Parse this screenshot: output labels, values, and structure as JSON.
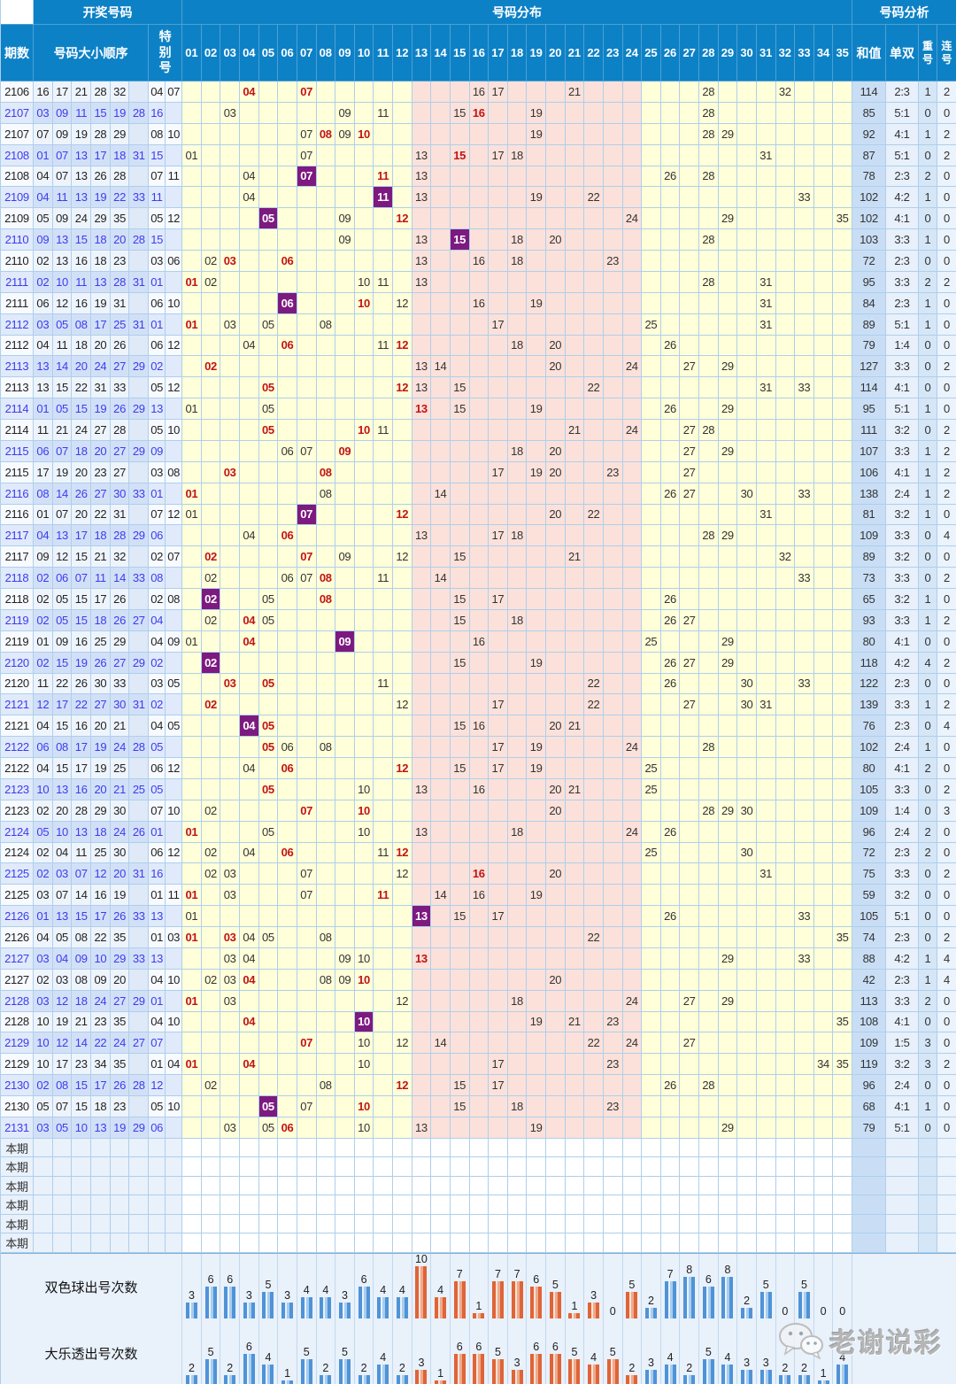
{
  "header": {
    "col_period": "期数",
    "group_draw": "开奖号码",
    "col_numbers": "号码大小顺序",
    "col_special": "特别号",
    "group_distribution": "号码分布",
    "group_analysis": "号码分析",
    "col_sum": "和值",
    "col_odd_even": "单双",
    "col_repeat": "重号",
    "col_consecutive": "连号",
    "distribution_columns": [
      "01",
      "02",
      "03",
      "04",
      "05",
      "06",
      "07",
      "08",
      "09",
      "10",
      "11",
      "12",
      "13",
      "14",
      "15",
      "16",
      "17",
      "18",
      "19",
      "20",
      "21",
      "22",
      "23",
      "24",
      "25",
      "26",
      "27",
      "28",
      "29",
      "30",
      "31",
      "32",
      "33",
      "34",
      "35"
    ]
  },
  "rows": [
    {
      "period": "2106",
      "kind": "dlt",
      "numbers": [
        "16",
        "17",
        "21",
        "28",
        "32"
      ],
      "special": [
        "04",
        "07"
      ],
      "sum": "114",
      "odd_even": "2:3",
      "repeat": "1",
      "consecutive": "2"
    },
    {
      "period": "2107",
      "kind": "ssq",
      "numbers": [
        "03",
        "09",
        "11",
        "15",
        "19",
        "28"
      ],
      "special": [
        "16"
      ],
      "sum": "85",
      "odd_even": "5:1",
      "repeat": "0",
      "consecutive": "0"
    },
    {
      "period": "2107",
      "kind": "dlt",
      "numbers": [
        "07",
        "09",
        "19",
        "28",
        "29"
      ],
      "special": [
        "08",
        "10"
      ],
      "sum": "92",
      "odd_even": "4:1",
      "repeat": "1",
      "consecutive": "2"
    },
    {
      "period": "2108",
      "kind": "ssq",
      "numbers": [
        "01",
        "07",
        "13",
        "17",
        "18",
        "31"
      ],
      "special": [
        "15"
      ],
      "sum": "87",
      "odd_even": "5:1",
      "repeat": "0",
      "consecutive": "2"
    },
    {
      "period": "2108",
      "kind": "dlt",
      "numbers": [
        "04",
        "07",
        "13",
        "26",
        "28"
      ],
      "special": [
        "07",
        "11"
      ],
      "sum": "78",
      "odd_even": "2:3",
      "repeat": "2",
      "consecutive": "0"
    },
    {
      "period": "2109",
      "kind": "ssq",
      "numbers": [
        "04",
        "11",
        "13",
        "19",
        "22",
        "33"
      ],
      "special": [
        "11"
      ],
      "sum": "102",
      "odd_even": "4:2",
      "repeat": "1",
      "consecutive": "0"
    },
    {
      "period": "2109",
      "kind": "dlt",
      "numbers": [
        "05",
        "09",
        "24",
        "29",
        "35"
      ],
      "special": [
        "05",
        "12"
      ],
      "sum": "102",
      "odd_even": "4:1",
      "repeat": "0",
      "consecutive": "0"
    },
    {
      "period": "2110",
      "kind": "ssq",
      "numbers": [
        "09",
        "13",
        "15",
        "18",
        "20",
        "28"
      ],
      "special": [
        "15"
      ],
      "sum": "103",
      "odd_even": "3:3",
      "repeat": "1",
      "consecutive": "0"
    },
    {
      "period": "2110",
      "kind": "dlt",
      "numbers": [
        "02",
        "13",
        "16",
        "18",
        "23"
      ],
      "special": [
        "03",
        "06"
      ],
      "sum": "72",
      "odd_even": "2:3",
      "repeat": "0",
      "consecutive": "0"
    },
    {
      "period": "2111",
      "kind": "ssq",
      "numbers": [
        "02",
        "10",
        "11",
        "13",
        "28",
        "31"
      ],
      "special": [
        "01"
      ],
      "sum": "95",
      "odd_even": "3:3",
      "repeat": "2",
      "consecutive": "2"
    },
    {
      "period": "2111",
      "kind": "dlt",
      "numbers": [
        "06",
        "12",
        "16",
        "19",
        "31"
      ],
      "special": [
        "06",
        "10"
      ],
      "sum": "84",
      "odd_even": "2:3",
      "repeat": "1",
      "consecutive": "0"
    },
    {
      "period": "2112",
      "kind": "ssq",
      "numbers": [
        "03",
        "05",
        "08",
        "17",
        "25",
        "31"
      ],
      "special": [
        "01"
      ],
      "sum": "89",
      "odd_even": "5:1",
      "repeat": "1",
      "consecutive": "0"
    },
    {
      "period": "2112",
      "kind": "dlt",
      "numbers": [
        "04",
        "11",
        "18",
        "20",
        "26"
      ],
      "special": [
        "06",
        "12"
      ],
      "sum": "79",
      "odd_even": "1:4",
      "repeat": "0",
      "consecutive": "0"
    },
    {
      "period": "2113",
      "kind": "ssq",
      "numbers": [
        "13",
        "14",
        "20",
        "24",
        "27",
        "29"
      ],
      "special": [
        "02"
      ],
      "sum": "127",
      "odd_even": "3:3",
      "repeat": "0",
      "consecutive": "2"
    },
    {
      "period": "2113",
      "kind": "dlt",
      "numbers": [
        "13",
        "15",
        "22",
        "31",
        "33"
      ],
      "special": [
        "05",
        "12"
      ],
      "sum": "114",
      "odd_even": "4:1",
      "repeat": "0",
      "consecutive": "0"
    },
    {
      "period": "2114",
      "kind": "ssq",
      "numbers": [
        "01",
        "05",
        "15",
        "19",
        "26",
        "29"
      ],
      "special": [
        "13"
      ],
      "sum": "95",
      "odd_even": "5:1",
      "repeat": "1",
      "consecutive": "0"
    },
    {
      "period": "2114",
      "kind": "dlt",
      "numbers": [
        "11",
        "21",
        "24",
        "27",
        "28"
      ],
      "special": [
        "05",
        "10"
      ],
      "sum": "111",
      "odd_even": "3:2",
      "repeat": "0",
      "consecutive": "2"
    },
    {
      "period": "2115",
      "kind": "ssq",
      "numbers": [
        "06",
        "07",
        "18",
        "20",
        "27",
        "29"
      ],
      "special": [
        "09"
      ],
      "sum": "107",
      "odd_even": "3:3",
      "repeat": "1",
      "consecutive": "2"
    },
    {
      "period": "2115",
      "kind": "dlt",
      "numbers": [
        "17",
        "19",
        "20",
        "23",
        "27"
      ],
      "special": [
        "03",
        "08"
      ],
      "sum": "106",
      "odd_even": "4:1",
      "repeat": "1",
      "consecutive": "2"
    },
    {
      "period": "2116",
      "kind": "ssq",
      "numbers": [
        "08",
        "14",
        "26",
        "27",
        "30",
        "33"
      ],
      "special": [
        "01"
      ],
      "sum": "138",
      "odd_even": "2:4",
      "repeat": "1",
      "consecutive": "2"
    },
    {
      "period": "2116",
      "kind": "dlt",
      "numbers": [
        "01",
        "07",
        "20",
        "22",
        "31"
      ],
      "special": [
        "07",
        "12"
      ],
      "sum": "81",
      "odd_even": "3:2",
      "repeat": "1",
      "consecutive": "0"
    },
    {
      "period": "2117",
      "kind": "ssq",
      "numbers": [
        "04",
        "13",
        "17",
        "18",
        "28",
        "29"
      ],
      "special": [
        "06"
      ],
      "sum": "109",
      "odd_even": "3:3",
      "repeat": "0",
      "consecutive": "4"
    },
    {
      "period": "2117",
      "kind": "dlt",
      "numbers": [
        "09",
        "12",
        "15",
        "21",
        "32"
      ],
      "special": [
        "02",
        "07"
      ],
      "sum": "89",
      "odd_even": "3:2",
      "repeat": "0",
      "consecutive": "0"
    },
    {
      "period": "2118",
      "kind": "ssq",
      "numbers": [
        "02",
        "06",
        "07",
        "11",
        "14",
        "33"
      ],
      "special": [
        "08"
      ],
      "sum": "73",
      "odd_even": "3:3",
      "repeat": "0",
      "consecutive": "2"
    },
    {
      "period": "2118",
      "kind": "dlt",
      "numbers": [
        "02",
        "05",
        "15",
        "17",
        "26"
      ],
      "special": [
        "02",
        "08"
      ],
      "sum": "65",
      "odd_even": "3:2",
      "repeat": "1",
      "consecutive": "0"
    },
    {
      "period": "2119",
      "kind": "ssq",
      "numbers": [
        "02",
        "05",
        "15",
        "18",
        "26",
        "27"
      ],
      "special": [
        "04"
      ],
      "sum": "93",
      "odd_even": "3:3",
      "repeat": "1",
      "consecutive": "2"
    },
    {
      "period": "2119",
      "kind": "dlt",
      "numbers": [
        "01",
        "09",
        "16",
        "25",
        "29"
      ],
      "special": [
        "04",
        "09"
      ],
      "sum": "80",
      "odd_even": "4:1",
      "repeat": "0",
      "consecutive": "0"
    },
    {
      "period": "2120",
      "kind": "ssq",
      "numbers": [
        "02",
        "15",
        "19",
        "26",
        "27",
        "29"
      ],
      "special": [
        "02"
      ],
      "sum": "118",
      "odd_even": "4:2",
      "repeat": "4",
      "consecutive": "2"
    },
    {
      "period": "2120",
      "kind": "dlt",
      "numbers": [
        "11",
        "22",
        "26",
        "30",
        "33"
      ],
      "special": [
        "03",
        "05"
      ],
      "sum": "122",
      "odd_even": "2:3",
      "repeat": "0",
      "consecutive": "0"
    },
    {
      "period": "2121",
      "kind": "ssq",
      "numbers": [
        "12",
        "17",
        "22",
        "27",
        "30",
        "31"
      ],
      "special": [
        "02"
      ],
      "sum": "139",
      "odd_even": "3:3",
      "repeat": "1",
      "consecutive": "2"
    },
    {
      "period": "2121",
      "kind": "dlt",
      "numbers": [
        "04",
        "15",
        "16",
        "20",
        "21"
      ],
      "special": [
        "04",
        "05"
      ],
      "sum": "76",
      "odd_even": "2:3",
      "repeat": "0",
      "consecutive": "4"
    },
    {
      "period": "2122",
      "kind": "ssq",
      "numbers": [
        "06",
        "08",
        "17",
        "19",
        "24",
        "28"
      ],
      "special": [
        "05"
      ],
      "sum": "102",
      "odd_even": "2:4",
      "repeat": "1",
      "consecutive": "0"
    },
    {
      "period": "2122",
      "kind": "dlt",
      "numbers": [
        "04",
        "15",
        "17",
        "19",
        "25"
      ],
      "special": [
        "06",
        "12"
      ],
      "sum": "80",
      "odd_even": "4:1",
      "repeat": "2",
      "consecutive": "0"
    },
    {
      "period": "2123",
      "kind": "ssq",
      "numbers": [
        "10",
        "13",
        "16",
        "20",
        "21",
        "25"
      ],
      "special": [
        "05"
      ],
      "sum": "105",
      "odd_even": "3:3",
      "repeat": "0",
      "consecutive": "2"
    },
    {
      "period": "2123",
      "kind": "dlt",
      "numbers": [
        "02",
        "20",
        "28",
        "29",
        "30"
      ],
      "special": [
        "07",
        "10"
      ],
      "sum": "109",
      "odd_even": "1:4",
      "repeat": "0",
      "consecutive": "3"
    },
    {
      "period": "2124",
      "kind": "ssq",
      "numbers": [
        "05",
        "10",
        "13",
        "18",
        "24",
        "26"
      ],
      "special": [
        "01"
      ],
      "sum": "96",
      "odd_even": "2:4",
      "repeat": "2",
      "consecutive": "0"
    },
    {
      "period": "2124",
      "kind": "dlt",
      "numbers": [
        "02",
        "04",
        "11",
        "25",
        "30"
      ],
      "special": [
        "06",
        "12"
      ],
      "sum": "72",
      "odd_even": "2:3",
      "repeat": "2",
      "consecutive": "0"
    },
    {
      "period": "2125",
      "kind": "ssq",
      "numbers": [
        "02",
        "03",
        "07",
        "12",
        "20",
        "31"
      ],
      "special": [
        "16"
      ],
      "sum": "75",
      "odd_even": "3:3",
      "repeat": "0",
      "consecutive": "2"
    },
    {
      "period": "2125",
      "kind": "dlt",
      "numbers": [
        "03",
        "07",
        "14",
        "16",
        "19"
      ],
      "special": [
        "01",
        "11"
      ],
      "sum": "59",
      "odd_even": "3:2",
      "repeat": "0",
      "consecutive": "0"
    },
    {
      "period": "2126",
      "kind": "ssq",
      "numbers": [
        "01",
        "13",
        "15",
        "17",
        "26",
        "33"
      ],
      "special": [
        "13"
      ],
      "sum": "105",
      "odd_even": "5:1",
      "repeat": "0",
      "consecutive": "0"
    },
    {
      "period": "2126",
      "kind": "dlt",
      "numbers": [
        "04",
        "05",
        "08",
        "22",
        "35"
      ],
      "special": [
        "01",
        "03"
      ],
      "sum": "74",
      "odd_even": "2:3",
      "repeat": "0",
      "consecutive": "2"
    },
    {
      "period": "2127",
      "kind": "ssq",
      "numbers": [
        "03",
        "04",
        "09",
        "10",
        "29",
        "33"
      ],
      "special": [
        "13"
      ],
      "sum": "88",
      "odd_even": "4:2",
      "repeat": "1",
      "consecutive": "4"
    },
    {
      "period": "2127",
      "kind": "dlt",
      "numbers": [
        "02",
        "03",
        "08",
        "09",
        "20"
      ],
      "special": [
        "04",
        "10"
      ],
      "sum": "42",
      "odd_even": "2:3",
      "repeat": "1",
      "consecutive": "4"
    },
    {
      "period": "2128",
      "kind": "ssq",
      "numbers": [
        "03",
        "12",
        "18",
        "24",
        "27",
        "29"
      ],
      "special": [
        "01"
      ],
      "sum": "113",
      "odd_even": "3:3",
      "repeat": "2",
      "consecutive": "0"
    },
    {
      "period": "2128",
      "kind": "dlt",
      "numbers": [
        "10",
        "19",
        "21",
        "23",
        "35"
      ],
      "special": [
        "04",
        "10"
      ],
      "sum": "108",
      "odd_even": "4:1",
      "repeat": "0",
      "consecutive": "0"
    },
    {
      "period": "2129",
      "kind": "ssq",
      "numbers": [
        "10",
        "12",
        "14",
        "22",
        "24",
        "27"
      ],
      "special": [
        "07"
      ],
      "sum": "109",
      "odd_even": "1:5",
      "repeat": "3",
      "consecutive": "0"
    },
    {
      "period": "2129",
      "kind": "dlt",
      "numbers": [
        "10",
        "17",
        "23",
        "34",
        "35"
      ],
      "special": [
        "01",
        "04"
      ],
      "sum": "119",
      "odd_even": "3:2",
      "repeat": "3",
      "consecutive": "2"
    },
    {
      "period": "2130",
      "kind": "ssq",
      "numbers": [
        "02",
        "08",
        "15",
        "17",
        "26",
        "28"
      ],
      "special": [
        "12"
      ],
      "sum": "96",
      "odd_even": "2:4",
      "repeat": "0",
      "consecutive": "0"
    },
    {
      "period": "2130",
      "kind": "dlt",
      "numbers": [
        "05",
        "07",
        "15",
        "18",
        "23"
      ],
      "special": [
        "05",
        "10"
      ],
      "sum": "68",
      "odd_even": "4:1",
      "repeat": "1",
      "consecutive": "0"
    },
    {
      "period": "2131",
      "kind": "ssq",
      "numbers": [
        "03",
        "05",
        "10",
        "13",
        "19",
        "29"
      ],
      "special": [
        "06"
      ],
      "sum": "79",
      "odd_even": "5:1",
      "repeat": "0",
      "consecutive": "0"
    }
  ],
  "placeholder": {
    "label": "本期",
    "count": 6
  },
  "chart_data": {
    "type": "bar",
    "categories": [
      "01",
      "02",
      "03",
      "04",
      "05",
      "06",
      "07",
      "08",
      "09",
      "10",
      "11",
      "12",
      "13",
      "14",
      "15",
      "16",
      "17",
      "18",
      "19",
      "20",
      "21",
      "22",
      "23",
      "24",
      "25",
      "26",
      "27",
      "28",
      "29",
      "30",
      "31",
      "32",
      "33",
      "34",
      "35"
    ],
    "series": [
      {
        "name": "双色球出号次数",
        "values": [
          3,
          6,
          6,
          3,
          5,
          3,
          4,
          4,
          3,
          6,
          4,
          4,
          10,
          4,
          7,
          1,
          7,
          7,
          6,
          5,
          1,
          3,
          0,
          5,
          2,
          7,
          8,
          6,
          8,
          2,
          5,
          0,
          5,
          0,
          0
        ]
      },
      {
        "name": "大乐透出号次数",
        "values": [
          2,
          5,
          2,
          6,
          4,
          1,
          5,
          2,
          5,
          2,
          4,
          2,
          3,
          1,
          6,
          6,
          5,
          3,
          6,
          6,
          5,
          4,
          5,
          2,
          3,
          4,
          2,
          5,
          4,
          3,
          3,
          2,
          2,
          1,
          4
        ]
      }
    ],
    "ylim": [
      0,
      10
    ],
    "legend_position": "row-labels-left",
    "bar_color_cols_01_12_and_25_35": "#4f93d7",
    "bar_color_cols_13_24": "#df6438"
  },
  "zones": {
    "yellow_bg": "#ffffd9",
    "pink_bg": "#fbe1da",
    "pink_columns": "13-24"
  },
  "colors": {
    "header_bg": "#0d81c6",
    "grid": "#aecfeb",
    "purple_highlight": "#7d1a80",
    "special_red": "#c11414",
    "ssq_blue": "#3c3cf0"
  },
  "watermark": {
    "text": "老谢说彩"
  }
}
